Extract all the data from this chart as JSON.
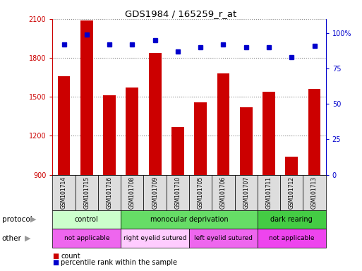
{
  "title": "GDS1984 / 165259_r_at",
  "samples": [
    "GSM101714",
    "GSM101715",
    "GSM101716",
    "GSM101708",
    "GSM101709",
    "GSM101710",
    "GSM101705",
    "GSM101706",
    "GSM101707",
    "GSM101711",
    "GSM101712",
    "GSM101713"
  ],
  "counts": [
    1660,
    2090,
    1510,
    1570,
    1840,
    1270,
    1460,
    1680,
    1420,
    1540,
    1040,
    1560
  ],
  "percentiles": [
    92,
    99,
    92,
    92,
    95,
    87,
    90,
    92,
    90,
    90,
    83,
    91
  ],
  "ylim": [
    900,
    2100
  ],
  "yticks": [
    900,
    1200,
    1500,
    1800,
    2100
  ],
  "y2lim": [
    0,
    110
  ],
  "y2ticks": [
    0,
    25,
    50,
    75,
    100
  ],
  "y2ticklabels": [
    "0",
    "25",
    "50",
    "75",
    "100%"
  ],
  "bar_color": "#cc0000",
  "dot_color": "#0000cc",
  "protocol_groups": [
    {
      "label": "control",
      "start": 0,
      "end": 3,
      "color": "#ccffcc"
    },
    {
      "label": "monocular deprivation",
      "start": 3,
      "end": 9,
      "color": "#66dd66"
    },
    {
      "label": "dark rearing",
      "start": 9,
      "end": 12,
      "color": "#44cc44"
    }
  ],
  "other_groups": [
    {
      "label": "not applicable",
      "start": 0,
      "end": 3,
      "color": "#ee66ee"
    },
    {
      "label": "right eyelid sutured",
      "start": 3,
      "end": 6,
      "color": "#ffccff"
    },
    {
      "label": "left eyelid sutured",
      "start": 6,
      "end": 9,
      "color": "#ee66ee"
    },
    {
      "label": "not applicable",
      "start": 9,
      "end": 12,
      "color": "#ee44ee"
    }
  ],
  "legend_count_label": "count",
  "legend_pct_label": "percentile rank within the sample",
  "protocol_label": "protocol",
  "other_label": "other",
  "grid_color": "#888888",
  "bg_color": "#ffffff",
  "tick_color_left": "#cc0000",
  "tick_color_right": "#0000cc",
  "xtick_box_color": "#dddddd",
  "arrow_color": "#999999"
}
